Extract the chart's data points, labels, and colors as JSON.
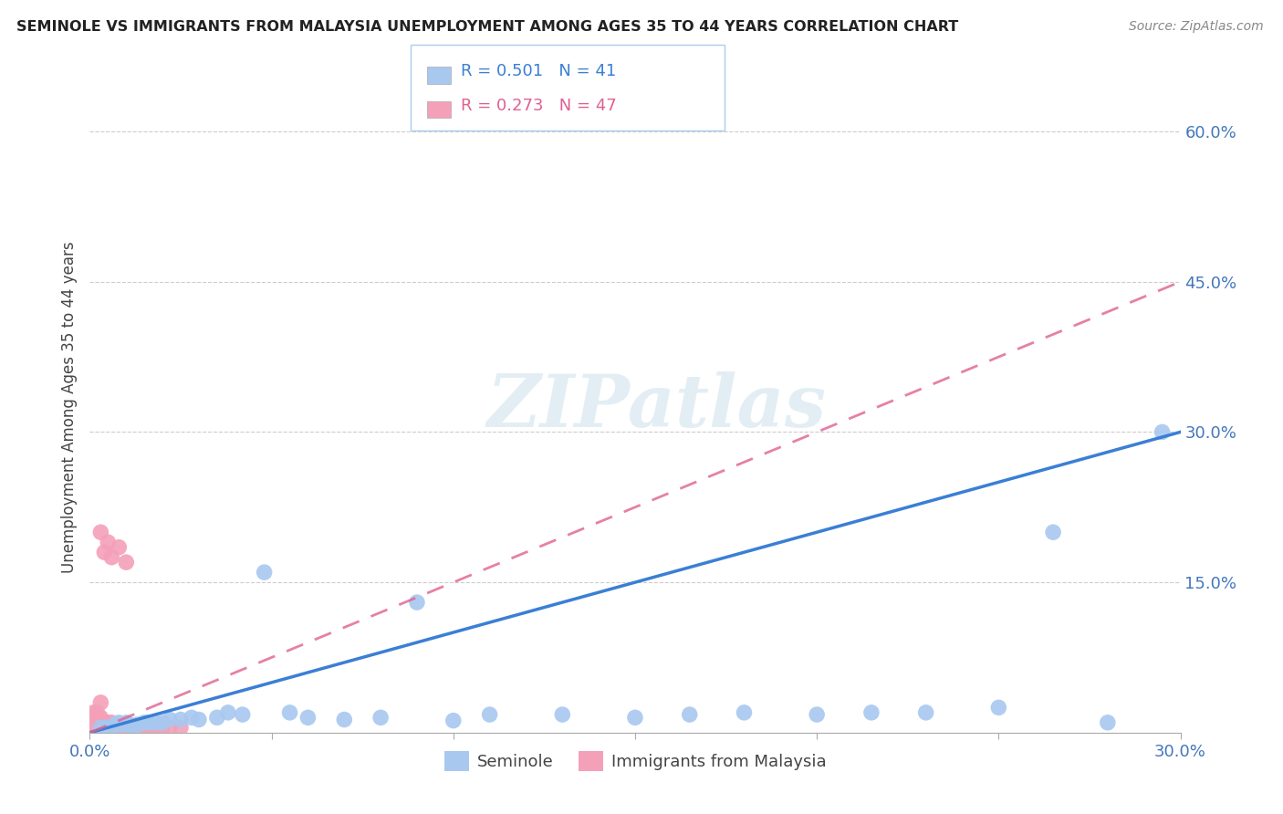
{
  "title": "SEMINOLE VS IMMIGRANTS FROM MALAYSIA UNEMPLOYMENT AMONG AGES 35 TO 44 YEARS CORRELATION CHART",
  "source": "Source: ZipAtlas.com",
  "ylabel": "Unemployment Among Ages 35 to 44 years",
  "xlim": [
    0.0,
    0.3
  ],
  "ylim": [
    0.0,
    0.65
  ],
  "xticks": [
    0.0,
    0.05,
    0.1,
    0.15,
    0.2,
    0.25,
    0.3
  ],
  "xticklabels": [
    "0.0%",
    "",
    "",
    "",
    "",
    "",
    "30.0%"
  ],
  "ytick_positions": [
    0.0,
    0.15,
    0.3,
    0.45,
    0.6
  ],
  "ytick_labels": [
    "",
    "15.0%",
    "30.0%",
    "45.0%",
    "60.0%"
  ],
  "seminole_R": 0.501,
  "seminole_N": 41,
  "malaysia_R": 0.273,
  "malaysia_N": 47,
  "seminole_color": "#a8c8f0",
  "malaysia_color": "#f4a0b8",
  "seminole_line_color": "#3a7fd5",
  "malaysia_line_color": "#e06090",
  "watermark_text": "ZIPatlas",
  "seminole_line": [
    0.0,
    0.0,
    0.3,
    0.3
  ],
  "malaysia_line": [
    0.0,
    0.0,
    0.3,
    0.45
  ],
  "seminole_x": [
    0.003,
    0.004,
    0.005,
    0.006,
    0.007,
    0.008,
    0.009,
    0.01,
    0.011,
    0.012,
    0.013,
    0.015,
    0.016,
    0.018,
    0.02,
    0.022,
    0.025,
    0.028,
    0.03,
    0.035,
    0.038,
    0.042,
    0.048,
    0.055,
    0.06,
    0.07,
    0.08,
    0.09,
    0.1,
    0.11,
    0.13,
    0.15,
    0.165,
    0.18,
    0.2,
    0.215,
    0.23,
    0.25,
    0.265,
    0.28,
    0.295
  ],
  "seminole_y": [
    0.005,
    0.005,
    0.005,
    0.005,
    0.008,
    0.01,
    0.008,
    0.01,
    0.008,
    0.005,
    0.008,
    0.01,
    0.01,
    0.01,
    0.01,
    0.013,
    0.013,
    0.015,
    0.013,
    0.015,
    0.02,
    0.018,
    0.16,
    0.02,
    0.015,
    0.013,
    0.015,
    0.13,
    0.012,
    0.018,
    0.018,
    0.015,
    0.018,
    0.02,
    0.018,
    0.02,
    0.02,
    0.025,
    0.2,
    0.01,
    0.3
  ],
  "malaysia_x": [
    0.001,
    0.001,
    0.001,
    0.001,
    0.002,
    0.002,
    0.002,
    0.002,
    0.002,
    0.003,
    0.003,
    0.003,
    0.003,
    0.004,
    0.004,
    0.004,
    0.005,
    0.005,
    0.005,
    0.006,
    0.006,
    0.007,
    0.007,
    0.008,
    0.008,
    0.009,
    0.009,
    0.01,
    0.01,
    0.011,
    0.012,
    0.013,
    0.014,
    0.015,
    0.016,
    0.017,
    0.018,
    0.019,
    0.02,
    0.022,
    0.025,
    0.003,
    0.004,
    0.005,
    0.006,
    0.008,
    0.01
  ],
  "malaysia_y": [
    0.005,
    0.008,
    0.01,
    0.02,
    0.005,
    0.008,
    0.01,
    0.015,
    0.02,
    0.005,
    0.008,
    0.015,
    0.03,
    0.005,
    0.008,
    0.01,
    0.005,
    0.008,
    0.01,
    0.005,
    0.01,
    0.005,
    0.008,
    0.005,
    0.008,
    0.005,
    0.008,
    0.005,
    0.008,
    0.005,
    0.005,
    0.005,
    0.005,
    0.005,
    0.005,
    0.005,
    0.005,
    0.005,
    0.005,
    0.005,
    0.005,
    0.2,
    0.18,
    0.19,
    0.175,
    0.185,
    0.17
  ]
}
